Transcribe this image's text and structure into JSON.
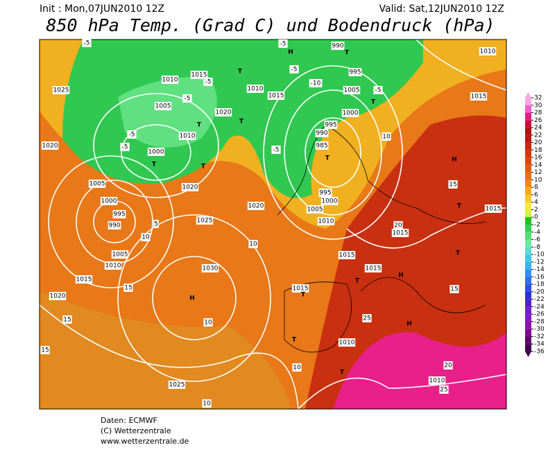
{
  "header": {
    "init": "Init : Mon,07JUN2010 12Z",
    "valid": "Valid: Sat,12JUN2010 12Z",
    "title": "850 hPa Temp. (Grad C) und Bodendruck (hPa)"
  },
  "colorbar": {
    "ticks": [
      32,
      30,
      28,
      26,
      24,
      22,
      20,
      18,
      16,
      14,
      12,
      10,
      8,
      6,
      4,
      2,
      0,
      -2,
      -4,
      -6,
      -8,
      -10,
      -12,
      -14,
      -16,
      -18,
      -20,
      -22,
      -24,
      -26,
      -28,
      -30,
      -32,
      -34,
      -36
    ],
    "colors": [
      "#f7a8e0",
      "#f060d0",
      "#e0208a",
      "#c81040",
      "#b01010",
      "#b81810",
      "#c82810",
      "#d03810",
      "#d84810",
      "#e05c14",
      "#e87018",
      "#f08818",
      "#f8a820",
      "#f8c828",
      "#f8e838",
      "#d8f040",
      "#20c020",
      "#30d050",
      "#50e070",
      "#70e8a0",
      "#60d8d0",
      "#40c8e8",
      "#40b0f0",
      "#3090f0",
      "#3070e8",
      "#3050e0",
      "#3030d8",
      "#5020d0",
      "#7020c8",
      "#8818c0",
      "#9010a8",
      "#800890",
      "#600070",
      "#400050"
    ]
  },
  "map_labels": [
    "1025",
    "1010",
    "1015",
    "1005",
    "1020",
    "1010",
    "1000",
    "T",
    "T",
    "1020",
    "1005",
    "1000",
    "995",
    "990",
    "1020",
    "1025",
    "1020",
    "1005",
    "1010",
    "1015",
    "1020",
    "1030",
    "H",
    "1025",
    "1010",
    "1015",
    "1005",
    "1000",
    "995",
    "990",
    "985",
    "995",
    "1000",
    "1005",
    "1010",
    "1015",
    "1015",
    "1015",
    "1015",
    "1010",
    "1010",
    "1015",
    "1010",
    "1015",
    "990",
    "995",
    "H",
    "H",
    "H",
    "H",
    "T",
    "T",
    "T",
    "T",
    "T",
    "T",
    "T",
    "T",
    "T",
    "T",
    "T",
    "T",
    "10",
    "10",
    "15",
    "15",
    "10",
    "15",
    "10",
    "10",
    "10",
    "15",
    "20",
    "15",
    "20",
    "25",
    "25",
    "-5",
    "-5",
    "-5",
    "-5",
    "-5",
    "-5",
    "-5",
    "-10",
    "-5",
    "-5",
    "5"
  ],
  "footer": {
    "data": "Daten: ECMWF",
    "copyright": "(C) Wetterzentrale",
    "url": "www.wetterzentrale.de"
  }
}
